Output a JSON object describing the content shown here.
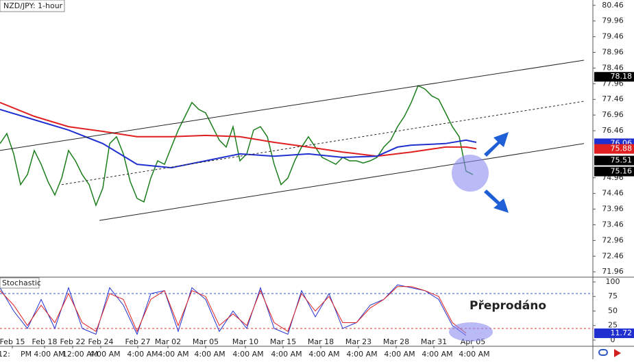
{
  "chart_data": [
    {
      "type": "line",
      "title": "NZD/JPY: 1-hour",
      "xlim": [
        0,
        173
      ],
      "ylim": [
        71.79,
        80.63
      ],
      "yticks": [
        80.46,
        79.96,
        79.46,
        78.96,
        78.46,
        77.96,
        77.46,
        76.96,
        76.46,
        74.96,
        74.46,
        73.96,
        73.46,
        72.96,
        72.46,
        71.96
      ],
      "series": [
        {
          "color": "#1a7d1a",
          "width": 1.5,
          "x": [
            0,
            2,
            4,
            6,
            8,
            10,
            12,
            14,
            16,
            18,
            20,
            22,
            24,
            26,
            28,
            30,
            32,
            34,
            36,
            38,
            40,
            42,
            44,
            46,
            48,
            50,
            52,
            54,
            56,
            58,
            60,
            62,
            64,
            66,
            68,
            70,
            72,
            74,
            76,
            78,
            80,
            82,
            84,
            86,
            88,
            90,
            92,
            94,
            96,
            98,
            100,
            102,
            104,
            106,
            108,
            110,
            112,
            114,
            116,
            118,
            120,
            122,
            124,
            126,
            128,
            130,
            132,
            134,
            136,
            138
          ],
          "values": [
            76.05,
            76.37,
            75.72,
            74.74,
            75.06,
            75.83,
            75.39,
            74.84,
            74.41,
            74.95,
            75.83,
            75.5,
            75.06,
            74.74,
            74.08,
            74.63,
            76.05,
            76.27,
            75.72,
            74.84,
            74.3,
            74.19,
            74.95,
            75.5,
            75.39,
            75.94,
            76.48,
            76.92,
            77.36,
            77.14,
            77.03,
            76.59,
            76.16,
            75.94,
            76.59,
            75.5,
            75.72,
            76.48,
            76.59,
            76.27,
            75.39,
            74.74,
            74.95,
            75.5,
            75.94,
            76.27,
            75.94,
            75.61,
            75.5,
            75.39,
            75.61,
            75.5,
            75.5,
            75.43,
            75.5,
            75.61,
            75.94,
            76.16,
            76.59,
            76.92,
            77.36,
            77.9,
            77.79,
            77.57,
            77.46,
            77.03,
            76.59,
            76.27,
            75.17,
            75.06
          ]
        },
        {
          "color": "#e02020",
          "width": 2,
          "x": [
            0,
            10,
            20,
            30,
            40,
            50,
            60,
            70,
            80,
            90,
            100,
            110,
            120,
            130,
            136,
            139
          ],
          "values": [
            77.36,
            76.92,
            76.59,
            76.44,
            76.27,
            76.27,
            76.31,
            76.27,
            76.09,
            75.94,
            75.78,
            75.65,
            75.78,
            75.94,
            75.94,
            75.89
          ]
        },
        {
          "color": "#2030d0",
          "width": 2,
          "x": [
            0,
            10,
            20,
            30,
            40,
            50,
            60,
            70,
            80,
            90,
            100,
            110,
            116,
            120,
            130,
            136,
            139
          ],
          "values": [
            77.14,
            76.81,
            76.48,
            76.05,
            75.39,
            75.28,
            75.5,
            75.72,
            75.65,
            75.72,
            75.61,
            75.65,
            75.94,
            76.0,
            76.05,
            76.16,
            76.09
          ]
        },
        {
          "color": "#222222",
          "width": 1,
          "x": [
            0,
            170.4
          ],
          "values": [
            75.83,
            78.71
          ]
        },
        {
          "color": "#222222",
          "width": 1,
          "x": [
            29,
            170.4
          ],
          "values": [
            73.6,
            76.05
          ]
        },
        {
          "color": "#222222",
          "width": 1,
          "dashed": true,
          "x": [
            18,
            170.4
          ],
          "values": [
            74.74,
            77.4
          ]
        }
      ],
      "price_labels": [
        {
          "value": 78.18,
          "color": "#000000"
        },
        {
          "value": 76.06,
          "color": "#2030d0"
        },
        {
          "value": 75.88,
          "color": "#e02020"
        },
        {
          "value": 75.51,
          "color": "#000000"
        },
        {
          "value": 75.16,
          "color": "#000000"
        }
      ]
    },
    {
      "type": "line",
      "title": "Stochastic",
      "annotation": "Přeprodáno",
      "xlim": [
        0,
        173
      ],
      "ylim": [
        -9.4,
        108.2
      ],
      "yticks": [
        100,
        75,
        50,
        25,
        0
      ],
      "levels": [
        {
          "value": 80,
          "color": "#3355cc"
        },
        {
          "value": 20,
          "color": "#e03030"
        }
      ],
      "series": [
        {
          "color": "#2030d0",
          "width": 1,
          "x": [
            0,
            4,
            8,
            12,
            16,
            20,
            24,
            28,
            32,
            36,
            40,
            44,
            48,
            52,
            56,
            60,
            64,
            68,
            72,
            76,
            80,
            84,
            88,
            92,
            96,
            100,
            104,
            108,
            112,
            116,
            120,
            124,
            128,
            132,
            136
          ],
          "values": [
            90,
            50,
            20,
            70,
            20,
            90,
            20,
            10,
            90,
            60,
            10,
            80,
            85,
            15,
            90,
            70,
            15,
            50,
            20,
            90,
            20,
            10,
            85,
            40,
            80,
            20,
            30,
            60,
            70,
            95,
            90,
            85,
            70,
            25,
            8
          ]
        },
        {
          "color": "#e02020",
          "width": 1,
          "x": [
            0,
            4,
            8,
            12,
            16,
            20,
            24,
            28,
            32,
            36,
            40,
            44,
            48,
            52,
            56,
            60,
            64,
            68,
            72,
            76,
            80,
            84,
            88,
            92,
            96,
            100,
            104,
            108,
            112,
            116,
            120,
            124,
            128,
            132,
            136
          ],
          "values": [
            85,
            60,
            25,
            60,
            30,
            80,
            30,
            15,
            80,
            70,
            15,
            70,
            85,
            25,
            85,
            75,
            25,
            45,
            25,
            85,
            30,
            15,
            80,
            50,
            75,
            30,
            30,
            55,
            70,
            92,
            92,
            85,
            75,
            30,
            12
          ]
        }
      ],
      "price_labels": [
        {
          "value": 11.72,
          "color": "#2030d0"
        }
      ],
      "xticks": [
        {
          "value": 3.6,
          "label": "Feb 15"
        },
        {
          "value": 13,
          "label": "Feb 18"
        },
        {
          "value": 21.2,
          "label": "Feb 22"
        },
        {
          "value": 29.4,
          "label": "Feb 24"
        },
        {
          "value": 40.2,
          "label": "Feb 27"
        },
        {
          "value": 49,
          "label": "Mar 02"
        },
        {
          "value": 60,
          "label": "Mar 05"
        },
        {
          "value": 71.6,
          "label": "Mar 10"
        },
        {
          "value": 82.6,
          "label": "Mar 15"
        },
        {
          "value": 93.6,
          "label": "Mar 18"
        },
        {
          "value": 104.6,
          "label": "Mar 23"
        },
        {
          "value": 115.6,
          "label": "Mar 28"
        },
        {
          "value": 126.6,
          "label": "Mar 31"
        },
        {
          "value": 138,
          "label": "Apr 05"
        }
      ],
      "x_sublabels": [
        {
          "value": 1.2,
          "label": "12:"
        },
        {
          "value": 7.6,
          "label": "PM"
        },
        {
          "value": 14.4,
          "label": "4:00 AM"
        },
        {
          "value": 23.4,
          "label": "12:00 AM"
        },
        {
          "value": 30.6,
          "label": "4:00 AM"
        },
        {
          "value": 41.6,
          "label": "4:00 AM"
        },
        {
          "value": 50.6,
          "label": "4:00 AM"
        },
        {
          "value": 61.2,
          "label": "4:00 AM"
        },
        {
          "value": 72.4,
          "label": "4:00 AM"
        },
        {
          "value": 83.6,
          "label": "4:00 AM"
        },
        {
          "value": 94.6,
          "label": "4:00 AM"
        },
        {
          "value": 105.6,
          "label": "4:00 AM"
        },
        {
          "value": 116.6,
          "label": "4:00 AM"
        },
        {
          "value": 127.6,
          "label": "4:00 AM"
        },
        {
          "value": 138.4,
          "label": "4:00 AM"
        }
      ]
    }
  ]
}
